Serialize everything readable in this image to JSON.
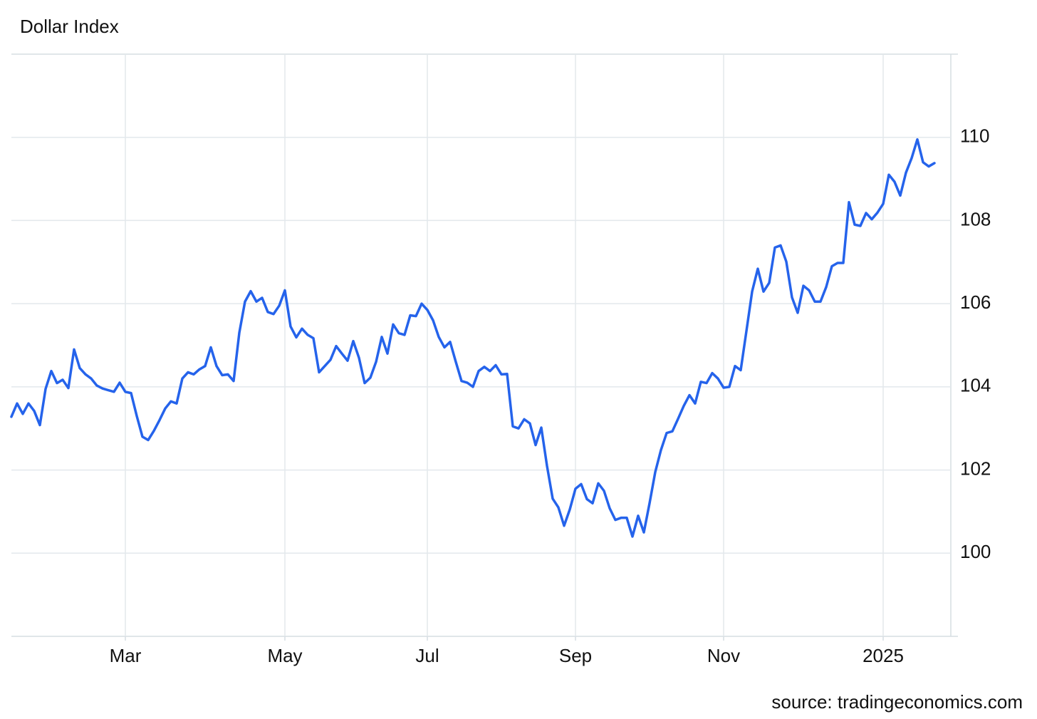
{
  "chart_data": {
    "type": "line",
    "title": "Dollar Index",
    "source": "source: tradingeconomics.com",
    "categories": [
      null,
      null,
      null,
      null,
      null,
      null,
      null,
      null,
      null,
      null,
      null,
      null,
      null,
      null,
      null,
      null,
      null,
      null,
      null,
      null,
      "Mar",
      null,
      null,
      null,
      null,
      null,
      null,
      null,
      null,
      null,
      null,
      null,
      null,
      null,
      null,
      null,
      null,
      null,
      null,
      null,
      null,
      null,
      null,
      null,
      null,
      null,
      null,
      null,
      "May",
      null,
      null,
      null,
      null,
      null,
      null,
      null,
      null,
      null,
      null,
      null,
      null,
      null,
      null,
      null,
      null,
      null,
      null,
      null,
      null,
      null,
      null,
      null,
      null,
      "Jul",
      null,
      null,
      null,
      null,
      null,
      null,
      null,
      null,
      null,
      null,
      null,
      null,
      null,
      null,
      null,
      null,
      null,
      null,
      null,
      null,
      null,
      null,
      null,
      null,
      null,
      "Sep",
      null,
      null,
      null,
      null,
      null,
      null,
      null,
      null,
      null,
      null,
      null,
      null,
      null,
      null,
      null,
      null,
      null,
      null,
      null,
      null,
      null,
      null,
      null,
      null,
      null,
      "Nov",
      null,
      null,
      null,
      null,
      null,
      null,
      null,
      null,
      null,
      null,
      null,
      null,
      null,
      null,
      null,
      null,
      null,
      null,
      null,
      null,
      null,
      null,
      null,
      null,
      null,
      null,
      null,
      "2025",
      null,
      null,
      null,
      null,
      null,
      null,
      null,
      null,
      null
    ],
    "series": [
      {
        "name": "Dollar Index",
        "color": "#2563eb",
        "values": [
          103.28,
          103.6,
          103.35,
          103.6,
          103.42,
          103.08,
          103.95,
          104.38,
          104.09,
          104.17,
          103.97,
          104.9,
          104.45,
          104.3,
          104.2,
          104.03,
          103.96,
          103.92,
          103.88,
          104.1,
          103.88,
          103.85,
          103.3,
          102.8,
          102.72,
          102.94,
          103.2,
          103.48,
          103.65,
          103.6,
          104.2,
          104.35,
          104.3,
          104.42,
          104.5,
          104.95,
          104.5,
          104.28,
          104.3,
          104.14,
          105.3,
          106.05,
          106.3,
          106.05,
          106.14,
          105.8,
          105.75,
          105.95,
          106.32,
          105.45,
          105.19,
          105.4,
          105.25,
          105.17,
          104.35,
          104.5,
          104.65,
          104.98,
          104.8,
          104.63,
          105.1,
          104.7,
          104.09,
          104.22,
          104.6,
          105.2,
          104.8,
          105.5,
          105.29,
          105.25,
          105.72,
          105.7,
          106.0,
          105.85,
          105.6,
          105.2,
          104.95,
          105.08,
          104.6,
          104.14,
          104.1,
          104.0,
          104.38,
          104.48,
          104.38,
          104.52,
          104.3,
          104.31,
          103.05,
          103.0,
          103.22,
          103.12,
          102.6,
          103.02,
          102.1,
          101.31,
          101.1,
          100.66,
          101.05,
          101.55,
          101.66,
          101.3,
          101.2,
          101.68,
          101.5,
          101.08,
          100.8,
          100.85,
          100.85,
          100.4,
          100.9,
          100.5,
          101.2,
          101.95,
          102.48,
          102.89,
          102.93,
          103.23,
          103.54,
          103.8,
          103.6,
          104.12,
          104.09,
          104.33,
          104.2,
          103.98,
          104.0,
          104.5,
          104.4,
          105.34,
          106.29,
          106.84,
          106.29,
          106.5,
          107.35,
          107.4,
          107.01,
          106.15,
          105.78,
          106.43,
          106.32,
          106.05,
          106.05,
          106.4,
          106.9,
          106.98,
          106.98,
          108.44,
          107.9,
          107.87,
          108.18,
          108.03,
          108.19,
          108.4,
          109.1,
          108.93,
          108.6,
          109.15,
          109.5,
          109.95,
          109.4,
          109.3,
          109.38
        ]
      }
    ],
    "ylim": [
      98,
      112
    ],
    "yticks": [
      100,
      102,
      104,
      106,
      108,
      110
    ],
    "grid": true
  }
}
